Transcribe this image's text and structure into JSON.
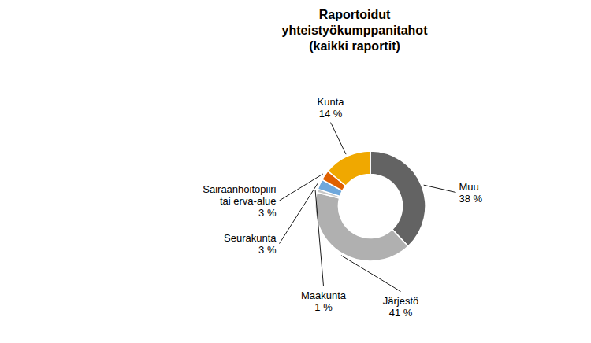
{
  "chart_data": {
    "type": "donut",
    "title": "Raportoidut\nyhteistyökumppanitahot\n(kaikki raportit)",
    "categories": [
      "Muu",
      "Järjestö",
      "Maakunta",
      "Seurakunta",
      "Sairaanhoitopiiri\ntai erva-alue",
      "Kunta"
    ],
    "values": [
      38,
      41,
      1,
      3,
      3,
      14
    ],
    "value_labels": [
      "38 %",
      "41 %",
      "1 %",
      "3 %",
      "3 %",
      "14 %"
    ],
    "colors": [
      "#636363",
      "#b0b0b0",
      "#c8c8c8",
      "#6fa8dc",
      "#e06000",
      "#f0a800"
    ]
  }
}
